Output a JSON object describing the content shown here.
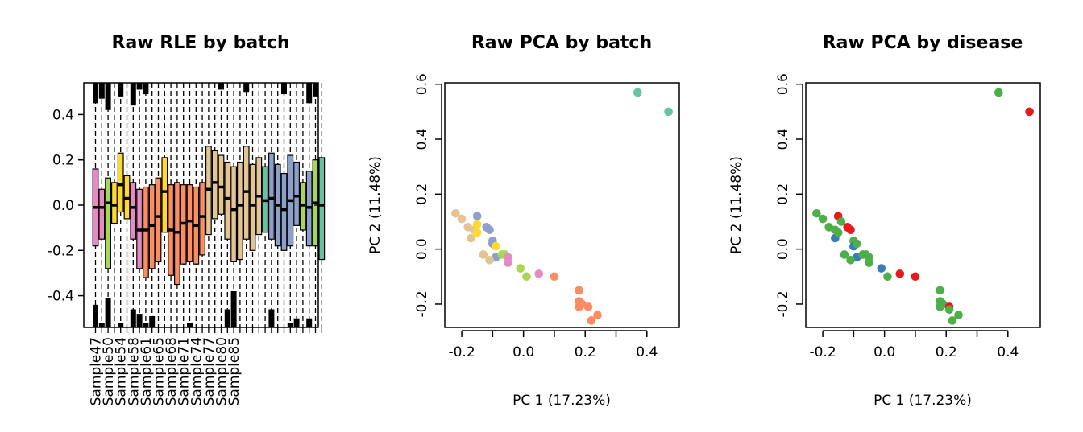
{
  "colors": {
    "batch": [
      "#e78ac3",
      "#a6d854",
      "#ffd92f",
      "#fc8d62",
      "#e5c494",
      "#8da0cb",
      "#66c2a5"
    ],
    "disease": [
      "#4daf4a",
      "#e41a1c",
      "#377eb8"
    ]
  },
  "chart_data": [
    {
      "type": "box",
      "title": "Raw RLE by batch",
      "ylim": [
        -0.54,
        0.54
      ],
      "yticks": [
        "-0.4",
        "-0.2",
        "0.0",
        "0.2",
        "0.4"
      ],
      "yticks_values": [
        -0.4,
        -0.2,
        0.0,
        0.2,
        0.4
      ],
      "xtick_labels": [
        "Sample47",
        "Sample50",
        "Sample54",
        "Sample58",
        "Sample61",
        "Sample65",
        "Sample68",
        "Sample71",
        "Sample74",
        "Sample77",
        "Sample80",
        "Sample85"
      ],
      "xtick_positions": [
        1,
        3,
        5,
        7,
        9,
        11,
        13,
        15,
        17,
        19,
        21,
        23
      ],
      "boxes": [
        {
          "q1": -0.18,
          "q3": 0.16,
          "median": -0.01,
          "batch": 0
        },
        {
          "q1": -0.15,
          "q3": 0.07,
          "median": -0.01,
          "batch": 0
        },
        {
          "q1": -0.28,
          "q3": 0.12,
          "median": 0.01,
          "batch": 1
        },
        {
          "q1": -0.08,
          "q3": 0.1,
          "median": 0.0,
          "batch": 2
        },
        {
          "q1": -0.03,
          "q3": 0.23,
          "median": 0.09,
          "batch": 2
        },
        {
          "q1": -0.06,
          "q3": 0.13,
          "median": 0.03,
          "batch": 2
        },
        {
          "q1": -0.15,
          "q3": 0.1,
          "median": -0.01,
          "batch": 0
        },
        {
          "q1": -0.28,
          "q3": 0.07,
          "median": -0.11,
          "batch": 0
        },
        {
          "q1": -0.32,
          "q3": 0.08,
          "median": -0.11,
          "batch": 3
        },
        {
          "q1": -0.28,
          "q3": 0.09,
          "median": -0.09,
          "batch": 3
        },
        {
          "q1": -0.25,
          "q3": 0.12,
          "median": -0.05,
          "batch": 3
        },
        {
          "q1": -0.12,
          "q3": 0.21,
          "median": 0.06,
          "batch": 2
        },
        {
          "q1": -0.31,
          "q3": 0.09,
          "median": -0.11,
          "batch": 3
        },
        {
          "q1": -0.35,
          "q3": 0.1,
          "median": -0.12,
          "batch": 3
        },
        {
          "q1": -0.26,
          "q3": 0.09,
          "median": -0.08,
          "batch": 3
        },
        {
          "q1": -0.25,
          "q3": 0.09,
          "median": -0.07,
          "batch": 3
        },
        {
          "q1": -0.26,
          "q3": 0.08,
          "median": -0.09,
          "batch": 3
        },
        {
          "q1": -0.22,
          "q3": 0.1,
          "median": -0.05,
          "batch": 3
        },
        {
          "q1": -0.13,
          "q3": 0.26,
          "median": 0.07,
          "batch": 4
        },
        {
          "q1": -0.06,
          "q3": 0.24,
          "median": 0.1,
          "batch": 4
        },
        {
          "q1": -0.04,
          "q3": 0.22,
          "median": 0.08,
          "batch": 4
        },
        {
          "q1": -0.15,
          "q3": 0.19,
          "median": 0.03,
          "batch": 4
        },
        {
          "q1": -0.25,
          "q3": 0.17,
          "median": -0.02,
          "batch": 4
        },
        {
          "q1": -0.24,
          "q3": 0.19,
          "median": 0.0,
          "batch": 4
        },
        {
          "q1": -0.15,
          "q3": 0.26,
          "median": 0.06,
          "batch": 4
        },
        {
          "q1": -0.2,
          "q3": 0.18,
          "median": 0.0,
          "batch": 4
        },
        {
          "q1": -0.13,
          "q3": 0.21,
          "median": 0.04,
          "batch": 4
        },
        {
          "q1": -0.12,
          "q3": 0.17,
          "median": 0.02,
          "batch": 6
        },
        {
          "q1": -0.15,
          "q3": 0.23,
          "median": 0.03,
          "batch": 5
        },
        {
          "q1": -0.18,
          "q3": 0.18,
          "median": 0.0,
          "batch": 5
        },
        {
          "q1": -0.2,
          "q3": 0.14,
          "median": -0.02,
          "batch": 5
        },
        {
          "q1": -0.18,
          "q3": 0.22,
          "median": 0.02,
          "batch": 5
        },
        {
          "q1": -0.09,
          "q3": 0.19,
          "median": 0.04,
          "batch": 5
        },
        {
          "q1": -0.11,
          "q3": 0.1,
          "median": 0.0,
          "batch": 1
        },
        {
          "q1": -0.18,
          "q3": 0.15,
          "median": -0.01,
          "batch": 5
        },
        {
          "q1": -0.18,
          "q3": 0.2,
          "median": 0.01,
          "batch": 1
        },
        {
          "q1": -0.24,
          "q3": 0.21,
          "median": 0.0,
          "batch": 6
        }
      ],
      "outlier_bars": [
        {
          "from": 0.45,
          "to": 0.54
        },
        {
          "from": -0.44,
          "to": -0.54
        },
        {
          "from": 0.47,
          "to": 0.54
        },
        {
          "from": -0.52,
          "to": -0.54
        },
        {
          "from": 0.42,
          "to": 0.54
        },
        {
          "from": -0.41,
          "to": -0.54
        },
        {
          "from": 0.48,
          "to": 0.54
        },
        {
          "from": -0.52,
          "to": -0.54
        },
        {
          "from": 0.44,
          "to": 0.54
        },
        {
          "from": -0.46,
          "to": -0.54
        },
        {
          "from": 0.51,
          "to": 0.54
        },
        {
          "from": -0.48,
          "to": -0.54
        },
        {
          "from": 0.49,
          "to": 0.54
        },
        {
          "from": -0.52,
          "to": -0.54
        },
        {
          "from": -0.49,
          "to": -0.54
        },
        {
          "from": -0.52,
          "to": -0.54
        },
        {
          "from": 0.51,
          "to": 0.54
        },
        {
          "from": -0.46,
          "to": -0.54
        },
        {
          "from": -0.38,
          "to": -0.54
        },
        {
          "from": 0.5,
          "to": 0.54
        },
        {
          "from": -0.46,
          "to": -0.54
        },
        {
          "from": 0.49,
          "to": 0.54
        },
        {
          "from": -0.52,
          "to": -0.54
        },
        {
          "from": -0.5,
          "to": -0.54
        },
        {
          "from": 0.45,
          "to": 0.54
        },
        {
          "from": -0.5,
          "to": -0.54
        },
        {
          "from": 0.48,
          "to": 0.54
        }
      ],
      "outlier_columns": [
        1,
        1,
        2,
        2,
        3,
        3,
        5,
        5,
        7,
        7,
        8,
        8,
        9,
        9,
        10,
        16,
        21,
        22,
        23,
        25,
        29,
        31,
        32,
        33,
        35,
        35,
        36
      ]
    },
    {
      "type": "scatter",
      "title": "Raw PCA by batch",
      "xlabel": "PC 1 (17.23%)",
      "ylabel": "PC 2 (11.48%)",
      "xlim": [
        -0.255,
        0.505
      ],
      "ylim": [
        -0.285,
        0.605
      ],
      "xticks": [
        "-0.2",
        "0.0",
        "0.2",
        "0.4"
      ],
      "xticks_values": [
        -0.2,
        0.0,
        0.2,
        0.4
      ],
      "minor_xticks_values": [
        -0.1,
        0.1,
        0.3
      ],
      "yticks": [
        "-0.2",
        "0.0",
        "0.2",
        "0.4",
        "0.6"
      ],
      "yticks_values": [
        -0.2,
        0.0,
        0.2,
        0.4,
        0.6
      ],
      "points": [
        {
          "x": 0.37,
          "y": 0.57,
          "c": 6
        },
        {
          "x": 0.47,
          "y": 0.5,
          "c": 6
        },
        {
          "x": -0.22,
          "y": 0.13,
          "c": 4
        },
        {
          "x": -0.2,
          "y": 0.11,
          "c": 4
        },
        {
          "x": -0.18,
          "y": 0.08,
          "c": 4
        },
        {
          "x": -0.16,
          "y": 0.07,
          "c": 4
        },
        {
          "x": -0.17,
          "y": 0.04,
          "c": 4
        },
        {
          "x": -0.15,
          "y": 0.12,
          "c": 5
        },
        {
          "x": -0.15,
          "y": 0.09,
          "c": 2
        },
        {
          "x": -0.15,
          "y": 0.06,
          "c": 2
        },
        {
          "x": -0.12,
          "y": 0.08,
          "c": 5
        },
        {
          "x": -0.11,
          "y": 0.07,
          "c": 5
        },
        {
          "x": -0.1,
          "y": 0.03,
          "c": 5
        },
        {
          "x": -0.1,
          "y": 0.02,
          "c": 5
        },
        {
          "x": -0.09,
          "y": 0.01,
          "c": 2
        },
        {
          "x": -0.09,
          "y": -0.03,
          "c": 5
        },
        {
          "x": -0.13,
          "y": -0.02,
          "c": 4
        },
        {
          "x": -0.11,
          "y": -0.04,
          "c": 4
        },
        {
          "x": -0.07,
          "y": -0.02,
          "c": 1
        },
        {
          "x": -0.06,
          "y": -0.02,
          "c": 1
        },
        {
          "x": -0.05,
          "y": -0.05,
          "c": 0
        },
        {
          "x": -0.05,
          "y": -0.03,
          "c": 0
        },
        {
          "x": -0.01,
          "y": -0.07,
          "c": 1
        },
        {
          "x": 0.01,
          "y": -0.1,
          "c": 1
        },
        {
          "x": 0.05,
          "y": -0.09,
          "c": 0
        },
        {
          "x": 0.1,
          "y": -0.1,
          "c": 3
        },
        {
          "x": 0.18,
          "y": -0.15,
          "c": 3
        },
        {
          "x": 0.18,
          "y": -0.19,
          "c": 3
        },
        {
          "x": 0.19,
          "y": -0.2,
          "c": 3
        },
        {
          "x": 0.18,
          "y": -0.21,
          "c": 3
        },
        {
          "x": 0.21,
          "y": -0.21,
          "c": 3
        },
        {
          "x": 0.24,
          "y": -0.24,
          "c": 3
        },
        {
          "x": 0.22,
          "y": -0.26,
          "c": 3
        }
      ]
    },
    {
      "type": "scatter",
      "title": "Raw PCA by disease",
      "xlabel": "PC 1 (17.23%)",
      "ylabel": "PC 2 (11.48%)",
      "xlim": [
        -0.255,
        0.505
      ],
      "ylim": [
        -0.285,
        0.605
      ],
      "xticks": [
        "-0.2",
        "0.0",
        "0.2",
        "0.4"
      ],
      "xticks_values": [
        -0.2,
        0.0,
        0.2,
        0.4
      ],
      "minor_xticks_values": [
        -0.1,
        0.1,
        0.3
      ],
      "yticks": [
        "-0.2",
        "0.0",
        "0.2",
        "0.4",
        "0.6"
      ],
      "yticks_values": [
        -0.2,
        0.0,
        0.2,
        0.4,
        0.6
      ],
      "points": [
        {
          "x": 0.37,
          "y": 0.57,
          "c": 0
        },
        {
          "x": 0.47,
          "y": 0.5,
          "c": 1
        },
        {
          "x": -0.22,
          "y": 0.13,
          "c": 0
        },
        {
          "x": -0.2,
          "y": 0.11,
          "c": 0
        },
        {
          "x": -0.18,
          "y": 0.08,
          "c": 0
        },
        {
          "x": -0.16,
          "y": 0.07,
          "c": 0
        },
        {
          "x": -0.16,
          "y": 0.04,
          "c": 2
        },
        {
          "x": -0.15,
          "y": 0.12,
          "c": 1
        },
        {
          "x": -0.14,
          "y": 0.1,
          "c": 0
        },
        {
          "x": -0.15,
          "y": 0.06,
          "c": 0
        },
        {
          "x": -0.12,
          "y": 0.08,
          "c": 1
        },
        {
          "x": -0.11,
          "y": 0.07,
          "c": 1
        },
        {
          "x": -0.1,
          "y": 0.03,
          "c": 0
        },
        {
          "x": -0.1,
          "y": 0.01,
          "c": 2
        },
        {
          "x": -0.09,
          "y": 0.02,
          "c": 0
        },
        {
          "x": -0.09,
          "y": -0.03,
          "c": 2
        },
        {
          "x": -0.13,
          "y": -0.02,
          "c": 0
        },
        {
          "x": -0.11,
          "y": -0.04,
          "c": 0
        },
        {
          "x": -0.07,
          "y": -0.02,
          "c": 0
        },
        {
          "x": -0.06,
          "y": -0.02,
          "c": 0
        },
        {
          "x": -0.05,
          "y": -0.05,
          "c": 0
        },
        {
          "x": -0.05,
          "y": -0.03,
          "c": 0
        },
        {
          "x": -0.01,
          "y": -0.07,
          "c": 2
        },
        {
          "x": 0.01,
          "y": -0.1,
          "c": 0
        },
        {
          "x": 0.05,
          "y": -0.09,
          "c": 1
        },
        {
          "x": 0.1,
          "y": -0.1,
          "c": 1
        },
        {
          "x": 0.18,
          "y": -0.15,
          "c": 0
        },
        {
          "x": 0.18,
          "y": -0.19,
          "c": 0
        },
        {
          "x": 0.19,
          "y": -0.2,
          "c": 0
        },
        {
          "x": 0.18,
          "y": -0.21,
          "c": 0
        },
        {
          "x": 0.21,
          "y": -0.21,
          "c": 1
        },
        {
          "x": 0.21,
          "y": -0.22,
          "c": 0
        },
        {
          "x": 0.24,
          "y": -0.24,
          "c": 0
        },
        {
          "x": 0.22,
          "y": -0.26,
          "c": 0
        }
      ]
    }
  ]
}
